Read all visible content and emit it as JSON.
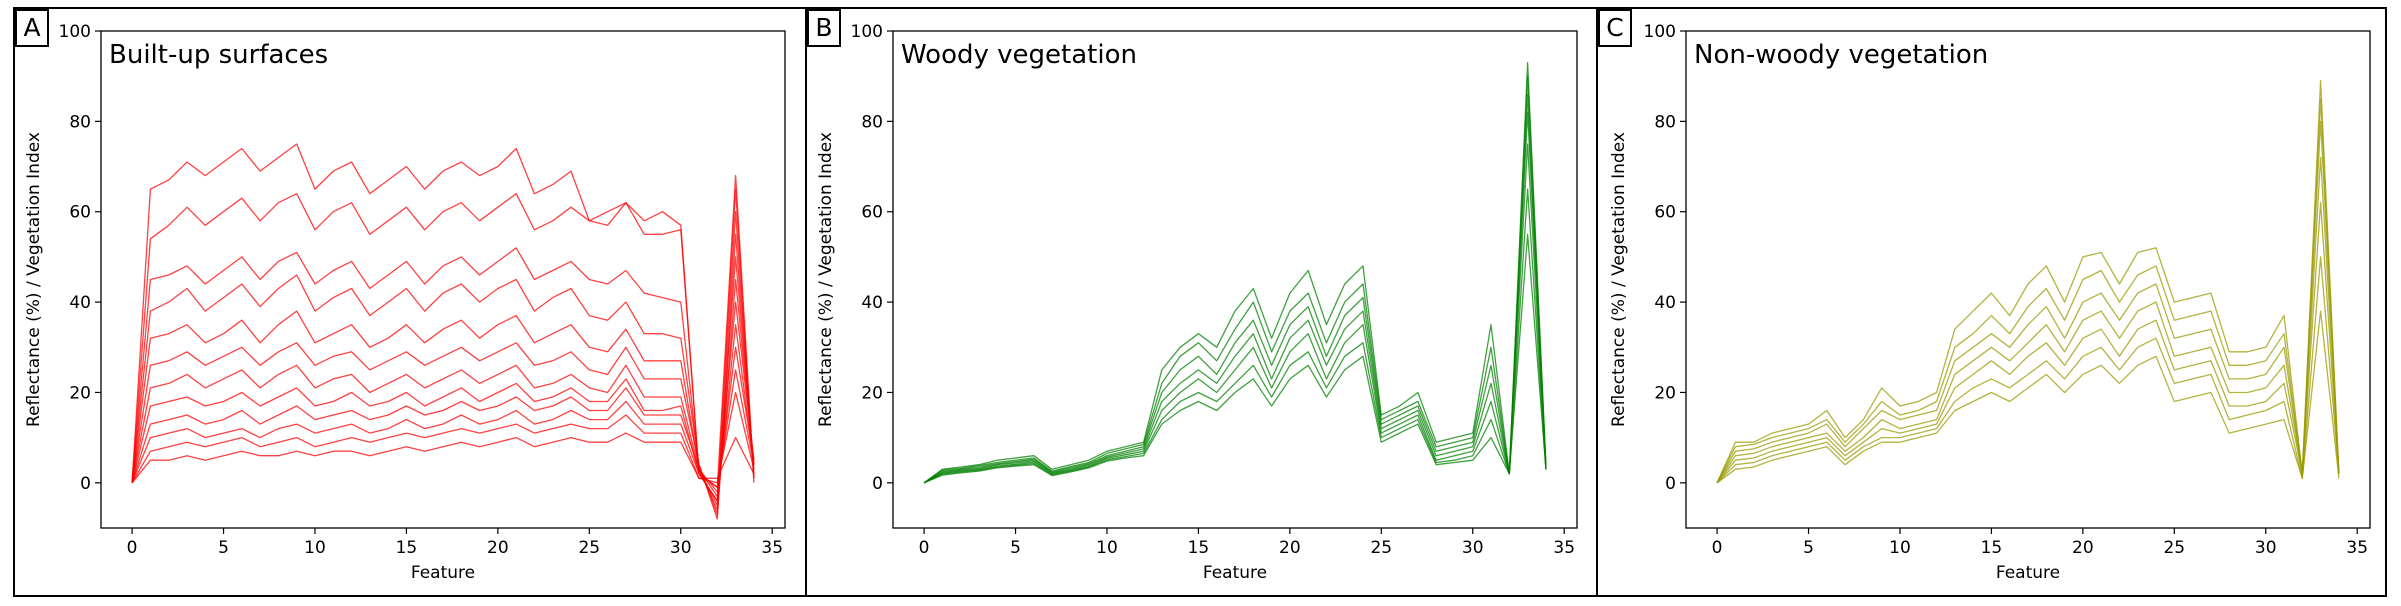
{
  "figure": {
    "panel_letters": [
      "A",
      "B",
      "C"
    ]
  },
  "chart_data": [
    {
      "type": "line",
      "title": "Built-up surfaces",
      "xlabel": "Feature",
      "ylabel": "Reflectance (%) / Vegetation Index",
      "xlim": [
        -1.7,
        35.7
      ],
      "ylim": [
        -10,
        100
      ],
      "xticks": [
        0,
        5,
        10,
        15,
        20,
        25,
        30,
        35
      ],
      "yticks": [
        0,
        20,
        40,
        60,
        80,
        100
      ],
      "color": "#ff0000",
      "x": [
        0,
        1,
        2,
        3,
        4,
        5,
        6,
        7,
        8,
        9,
        10,
        11,
        12,
        13,
        14,
        15,
        16,
        17,
        18,
        19,
        20,
        21,
        22,
        23,
        24,
        25,
        26,
        27,
        28,
        29,
        30,
        31,
        32,
        33,
        34
      ],
      "series": [
        {
          "values": [
            0,
            65,
            67,
            71,
            68,
            71,
            74,
            69,
            72,
            75,
            65,
            69,
            71,
            64,
            67,
            70,
            65,
            69,
            71,
            68,
            70,
            74,
            64,
            66,
            69,
            58,
            60,
            62,
            55,
            55,
            56,
            2,
            -1,
            68,
            1
          ]
        },
        {
          "values": [
            0,
            54,
            57,
            61,
            57,
            60,
            63,
            58,
            62,
            64,
            56,
            60,
            62,
            55,
            58,
            61,
            56,
            60,
            62,
            58,
            61,
            64,
            56,
            58,
            61,
            58,
            57,
            62,
            58,
            60,
            57,
            2,
            -4,
            65,
            0
          ]
        },
        {
          "values": [
            0,
            45,
            46,
            48,
            44,
            47,
            50,
            45,
            49,
            51,
            44,
            47,
            49,
            43,
            46,
            49,
            44,
            48,
            50,
            46,
            49,
            52,
            45,
            47,
            49,
            45,
            44,
            47,
            42,
            41,
            40,
            3,
            -6,
            60,
            1
          ]
        },
        {
          "values": [
            0,
            38,
            40,
            43,
            38,
            41,
            44,
            39,
            43,
            46,
            38,
            41,
            43,
            37,
            40,
            43,
            38,
            42,
            44,
            40,
            43,
            45,
            38,
            41,
            43,
            37,
            36,
            40,
            33,
            33,
            32,
            4,
            -8,
            55,
            2
          ]
        },
        {
          "values": [
            0,
            32,
            33,
            35,
            31,
            33,
            36,
            31,
            35,
            38,
            31,
            33,
            35,
            30,
            32,
            35,
            31,
            34,
            36,
            32,
            35,
            37,
            31,
            33,
            35,
            30,
            29,
            34,
            27,
            27,
            27,
            3,
            -5,
            50,
            3
          ]
        },
        {
          "values": [
            0,
            26,
            27,
            29,
            26,
            28,
            30,
            26,
            29,
            31,
            26,
            28,
            29,
            25,
            27,
            29,
            26,
            28,
            30,
            27,
            29,
            31,
            26,
            27,
            29,
            25,
            24,
            30,
            23,
            23,
            23,
            4,
            -7,
            45,
            4
          ]
        },
        {
          "values": [
            0,
            21,
            22,
            24,
            21,
            23,
            25,
            21,
            24,
            26,
            21,
            23,
            24,
            20,
            22,
            24,
            21,
            23,
            25,
            22,
            24,
            26,
            21,
            22,
            24,
            21,
            20,
            26,
            19,
            19,
            19,
            3,
            -3,
            40,
            5
          ]
        },
        {
          "values": [
            0,
            17,
            18,
            19,
            17,
            18,
            20,
            17,
            19,
            21,
            17,
            18,
            20,
            17,
            18,
            20,
            17,
            19,
            21,
            18,
            20,
            22,
            18,
            19,
            21,
            18,
            18,
            23,
            16,
            16,
            17,
            2,
            -4,
            35,
            4
          ]
        },
        {
          "values": [
            0,
            13,
            14,
            15,
            13,
            14,
            16,
            13,
            15,
            17,
            14,
            15,
            16,
            14,
            15,
            17,
            15,
            16,
            18,
            16,
            17,
            19,
            16,
            17,
            19,
            16,
            16,
            21,
            15,
            15,
            15,
            3,
            -2,
            30,
            5
          ]
        },
        {
          "values": [
            0,
            10,
            11,
            12,
            10,
            11,
            12,
            10,
            12,
            13,
            11,
            12,
            13,
            11,
            12,
            14,
            12,
            13,
            15,
            13,
            14,
            16,
            13,
            14,
            16,
            14,
            14,
            18,
            13,
            13,
            13,
            2,
            -1,
            25,
            4
          ]
        },
        {
          "values": [
            0,
            7,
            8,
            9,
            8,
            9,
            10,
            8,
            9,
            10,
            8,
            9,
            10,
            9,
            10,
            11,
            10,
            11,
            12,
            11,
            12,
            13,
            11,
            12,
            13,
            12,
            12,
            15,
            11,
            11,
            11,
            1,
            0,
            20,
            3
          ]
        },
        {
          "values": [
            0,
            5,
            5,
            6,
            5,
            6,
            7,
            6,
            6,
            7,
            6,
            7,
            7,
            6,
            7,
            8,
            7,
            8,
            9,
            8,
            9,
            10,
            8,
            9,
            10,
            9,
            9,
            11,
            9,
            9,
            9,
            1,
            1,
            10,
            2
          ]
        }
      ]
    },
    {
      "type": "line",
      "title": "Woody vegetation",
      "xlabel": "Feature",
      "ylabel": "Reflectance (%) / Vegetation Index",
      "xlim": [
        -1.7,
        35.7
      ],
      "ylim": [
        -10,
        100
      ],
      "xticks": [
        0,
        5,
        10,
        15,
        20,
        25,
        30,
        35
      ],
      "yticks": [
        0,
        20,
        40,
        60,
        80,
        100
      ],
      "color": "#008000",
      "x": [
        0,
        1,
        2,
        3,
        4,
        5,
        6,
        7,
        8,
        9,
        10,
        11,
        12,
        13,
        14,
        15,
        16,
        17,
        18,
        19,
        20,
        21,
        22,
        23,
        24,
        25,
        26,
        27,
        28,
        29,
        30,
        31,
        32,
        33,
        34
      ],
      "series": [
        {
          "values": [
            0,
            3,
            3.5,
            4,
            5,
            5.5,
            6,
            3,
            4,
            5,
            7,
            8,
            9,
            25,
            30,
            33,
            30,
            38,
            43,
            32,
            42,
            47,
            35,
            44,
            48,
            15,
            17,
            20,
            9,
            10,
            11,
            35,
            2,
            93,
            4
          ]
        },
        {
          "values": [
            0,
            2.8,
            3.2,
            3.8,
            4.5,
            5,
            5.5,
            2.6,
            3.6,
            4.5,
            6.5,
            7.5,
            8.5,
            22,
            28,
            31,
            27,
            34,
            40,
            29,
            38,
            42,
            31,
            40,
            44,
            14,
            16,
            18,
            8,
            9,
            10,
            30,
            2,
            90,
            4
          ]
        },
        {
          "values": [
            0,
            2.5,
            3,
            3.5,
            4.2,
            4.7,
            5.2,
            2.4,
            3.3,
            4.2,
            6,
            7,
            8,
            20,
            25,
            28,
            24,
            31,
            36,
            26,
            35,
            39,
            28,
            37,
            41,
            13,
            15,
            17,
            7,
            8,
            9,
            26,
            2,
            86,
            3
          ]
        },
        {
          "values": [
            0,
            2.3,
            2.8,
            3.2,
            4,
            4.4,
            4.9,
            2.2,
            3,
            4,
            5.7,
            6.6,
            7.5,
            18,
            22,
            25,
            22,
            28,
            33,
            23,
            32,
            36,
            26,
            34,
            38,
            12,
            14,
            16,
            6,
            7,
            8,
            22,
            2,
            82,
            3
          ]
        },
        {
          "values": [
            0,
            2.1,
            2.6,
            3,
            3.7,
            4.1,
            4.6,
            2,
            2.8,
            3.7,
            5.4,
            6.2,
            7,
            16,
            20,
            23,
            20,
            25,
            30,
            21,
            29,
            33,
            23,
            31,
            35,
            11,
            13,
            15,
            5,
            6,
            7,
            18,
            2,
            75,
            3
          ]
        },
        {
          "values": [
            0,
            1.9,
            2.4,
            2.8,
            3.5,
            3.9,
            4.3,
            1.8,
            2.6,
            3.5,
            5.1,
            5.8,
            6.5,
            14,
            18,
            20,
            18,
            22,
            26,
            19,
            26,
            29,
            21,
            28,
            31,
            10,
            12,
            14,
            4.5,
            5,
            6,
            14,
            2,
            65,
            3
          ]
        },
        {
          "values": [
            0,
            1.7,
            2.2,
            2.6,
            3.3,
            3.7,
            4,
            1.6,
            2.4,
            3.3,
            4.8,
            5.5,
            6,
            13,
            16,
            18,
            16,
            20,
            23,
            17,
            23,
            26,
            19,
            25,
            28,
            9,
            11,
            13,
            4,
            4.5,
            5,
            10,
            2,
            55,
            3
          ]
        }
      ]
    },
    {
      "type": "line",
      "title": "Non-woody vegetation",
      "xlabel": "Feature",
      "ylabel": "Reflectance (%) / Vegetation Index",
      "xlim": [
        -1.7,
        35.7
      ],
      "ylim": [
        -10,
        100
      ],
      "xticks": [
        0,
        5,
        10,
        15,
        20,
        25,
        30,
        35
      ],
      "yticks": [
        0,
        20,
        40,
        60,
        80,
        100
      ],
      "color": "#999900",
      "x": [
        0,
        1,
        2,
        3,
        4,
        5,
        6,
        7,
        8,
        9,
        10,
        11,
        12,
        13,
        14,
        15,
        16,
        17,
        18,
        19,
        20,
        21,
        22,
        23,
        24,
        25,
        26,
        27,
        28,
        29,
        30,
        31,
        32,
        33,
        34
      ],
      "series": [
        {
          "values": [
            0,
            9,
            9,
            11,
            12,
            13,
            16,
            10,
            14,
            21,
            17,
            18,
            20,
            34,
            38,
            42,
            37,
            44,
            48,
            40,
            50,
            51,
            44,
            51,
            52,
            40,
            41,
            42,
            29,
            29,
            30,
            37,
            2,
            89,
            2
          ]
        },
        {
          "values": [
            0,
            8,
            8.5,
            10,
            11,
            12,
            14,
            9,
            13,
            18,
            15,
            16,
            18,
            30,
            33,
            37,
            33,
            39,
            43,
            36,
            45,
            47,
            40,
            46,
            48,
            36,
            37,
            38,
            26,
            26,
            27,
            33,
            2,
            85,
            2
          ]
        },
        {
          "values": [
            0,
            7,
            7.5,
            9,
            10,
            11,
            13,
            8,
            12,
            16,
            14,
            15,
            16,
            27,
            30,
            33,
            30,
            35,
            39,
            32,
            40,
            42,
            36,
            42,
            44,
            32,
            33,
            34,
            23,
            23,
            24,
            30,
            2,
            80,
            2
          ]
        },
        {
          "values": [
            0,
            6,
            6.5,
            8,
            9,
            10,
            11,
            7,
            10,
            14,
            12,
            13,
            14,
            24,
            27,
            30,
            27,
            31,
            35,
            29,
            36,
            38,
            32,
            38,
            40,
            28,
            29,
            30,
            20,
            20,
            21,
            26,
            2,
            72,
            2
          ]
        },
        {
          "values": [
            0,
            5,
            5.5,
            7,
            8,
            9,
            10,
            6,
            9,
            12,
            11,
            12,
            13,
            21,
            24,
            27,
            24,
            28,
            31,
            26,
            32,
            34,
            28,
            34,
            36,
            25,
            26,
            27,
            17,
            17,
            18,
            22,
            2,
            62,
            2
          ]
        },
        {
          "values": [
            0,
            4,
            4.5,
            6,
            7,
            8,
            9,
            5,
            8,
            10,
            10,
            11,
            12,
            18,
            21,
            23,
            21,
            24,
            27,
            23,
            28,
            30,
            25,
            30,
            32,
            22,
            23,
            24,
            14,
            15,
            16,
            18,
            1,
            50,
            2
          ]
        },
        {
          "values": [
            0,
            3,
            3.5,
            5,
            6,
            7,
            8,
            4,
            7,
            9,
            9,
            10,
            11,
            16,
            18,
            20,
            18,
            21,
            24,
            20,
            24,
            26,
            22,
            26,
            28,
            18,
            19,
            20,
            11,
            12,
            13,
            14,
            1,
            38,
            1
          ]
        }
      ]
    }
  ]
}
